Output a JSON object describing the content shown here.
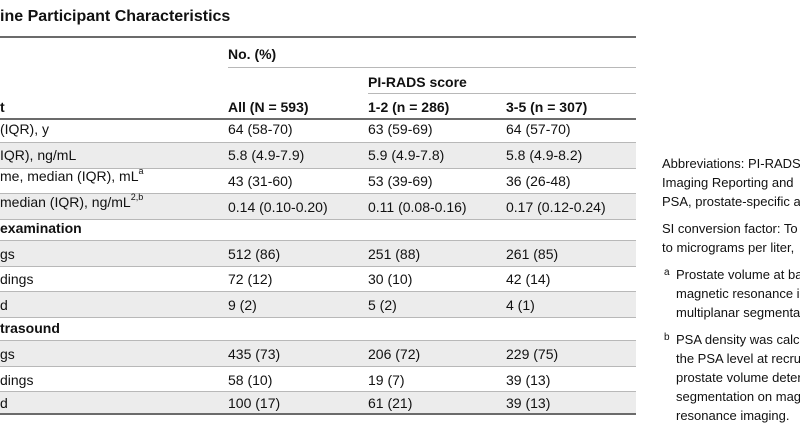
{
  "table": {
    "title": "ine Participant Characteristics",
    "header": {
      "group_label": "No. (%)",
      "subgroup_label": "PI-RADS score",
      "row_label_col": "t",
      "columns": [
        "All (N = 593)",
        "1-2 (n = 286)",
        "3-5 (n = 307)"
      ]
    },
    "rows": [
      {
        "label": "(IQR), y",
        "all": "64 (58-70)",
        "low": "63 (59-69)",
        "high": "64 (57-70)"
      },
      {
        "label": "IQR), ng/mL",
        "all": "5.8 (4.9-7.9)",
        "low": "5.9 (4.9-7.8)",
        "high": "5.8 (4.9-8.2)"
      },
      {
        "label": "me, median (IQR), mL",
        "sup": "a",
        "all": "43 (31-60)",
        "low": "53 (39-69)",
        "high": "36 (26-48)"
      },
      {
        "label": "median (IQR), ng/mL",
        "sup": "2,b",
        "all": "0.14 (0.10-0.20)",
        "low": "0.11 (0.08-0.16)",
        "high": "0.17 (0.12-0.24)"
      }
    ],
    "section1": {
      "label": "examination",
      "rows": [
        {
          "label": "gs",
          "all": "512 (86)",
          "low": "251 (88)",
          "high": "261 (85)"
        },
        {
          "label": "dings",
          "all": "72 (12)",
          "low": "30 (10)",
          "high": "42 (14)"
        },
        {
          "label": "d",
          "all": "9 (2)",
          "low": "5 (2)",
          "high": "4 (1)"
        }
      ]
    },
    "section2": {
      "label": "trasound",
      "rows": [
        {
          "label": "gs",
          "all": "435 (73)",
          "low": "206 (72)",
          "high": "229 (75)"
        },
        {
          "label": "dings",
          "all": "58 (10)",
          "low": "19 (7)",
          "high": "39 (13)"
        },
        {
          "label": "d",
          "all": "100 (17)",
          "low": "61 (21)",
          "high": "39 (13)"
        }
      ]
    }
  },
  "notes": {
    "abbrev": [
      "Abbreviations: PI-RADS",
      "Imaging Reporting and",
      "PSA, prostate-specific a"
    ],
    "si": [
      "SI conversion factor: To",
      "to micrograms per liter,"
    ],
    "footnote_a": {
      "mark": "a",
      "lines": [
        "Prostate volume at ba",
        "magnetic resonance im",
        "multiplanar segmenta"
      ]
    },
    "footnote_b": {
      "mark": "b",
      "lines": [
        "PSA density was calcu",
        "the PSA level at recrui",
        "prostate volume deter",
        "segmentation on mag",
        "resonance imaging."
      ]
    }
  }
}
